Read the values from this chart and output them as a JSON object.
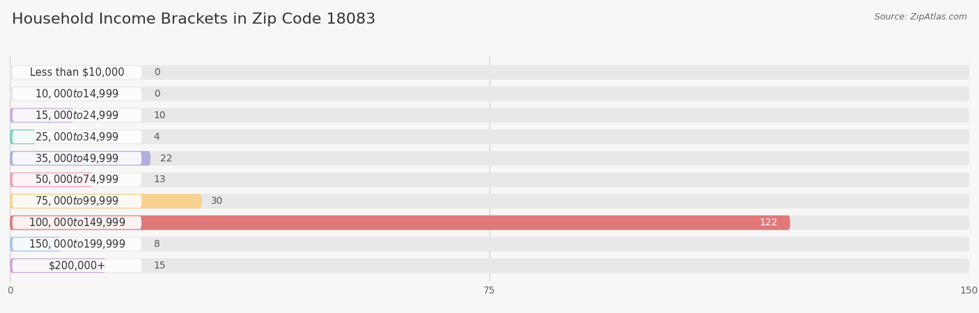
{
  "title": "Household Income Brackets in Zip Code 18083",
  "source": "Source: ZipAtlas.com",
  "categories": [
    "Less than $10,000",
    "$10,000 to $14,999",
    "$15,000 to $24,999",
    "$25,000 to $34,999",
    "$35,000 to $49,999",
    "$50,000 to $74,999",
    "$75,000 to $99,999",
    "$100,000 to $149,999",
    "$150,000 to $199,999",
    "$200,000+"
  ],
  "values": [
    0,
    0,
    10,
    4,
    22,
    13,
    30,
    122,
    8,
    15
  ],
  "bar_colors": [
    "#f5a8a8",
    "#a8c8f0",
    "#c8aed8",
    "#7ecec4",
    "#b0aee0",
    "#f0a0b8",
    "#f8d090",
    "#e07878",
    "#a8c4e8",
    "#d0a8d0"
  ],
  "background_color": "#f7f7f7",
  "bar_background_color": "#e8e8e8",
  "xlim": [
    0,
    150
  ],
  "xticks": [
    0,
    75,
    150
  ],
  "title_fontsize": 16,
  "label_fontsize": 10.5,
  "value_fontsize": 10
}
